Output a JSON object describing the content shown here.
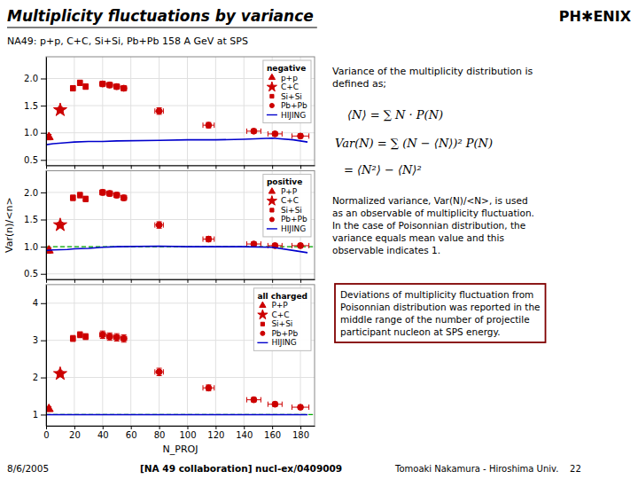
{
  "title": "Multiplicity fluctuations by variance",
  "subtitle": "NA49: p+p, C+C, Si+Si, Pb+Pb 158 A GeV at SPS",
  "annotations": [
    [
      "PH✱ENIX"
    ],
    [
      "Variance of the multiplicity distribution is",
      "defined as;"
    ],
    [
      "⟨N⟩ = ∑ N · P(N)"
    ],
    [
      "Var(N) = ∑ (N − ⟨N⟩)² P(N)"
    ],
    [
      "= ⟨N²⟩ − ⟨N⟩²"
    ],
    [
      "Normalized variance, Var(N)/<N>, is used",
      "as an observable of multiplicity fluctuation.",
      "In the case of Poisonnian distribution, the",
      "variance equals mean value and this",
      "observable indicates 1."
    ],
    [
      "Deviations of multiplicity fluctuation from",
      "Poisonnian distribution was reported in the",
      "middle range of the number of projectile",
      "participant nucleon at SPS energy."
    ],
    [
      "8/6/2005"
    ],
    [
      "[NA 49 collaboration] nucl-ex/0409009"
    ],
    [
      "Tomoaki Nakamura - Hiroshima Univ.    22"
    ]
  ],
  "chart_data": [
    {
      "type": "scatter",
      "title": "negative",
      "xlim": [
        0,
        190
      ],
      "xticks": [
        0,
        20,
        40,
        60,
        80,
        100,
        120,
        140,
        160,
        180
      ],
      "ylim": [
        0.4,
        2.4
      ],
      "yticks": [
        0.5,
        {
          "value": 1,
          "label": "1.0"
        },
        1.5,
        {
          "value": 2,
          "label": "2.0"
        }
      ],
      "grid": true,
      "legend": "upper right",
      "tick_labels": "y",
      "series": [
        {
          "name": "p+p",
          "marker": "triangle",
          "color": "#cc0000",
          "x": [
            2
          ],
          "values": [
            0.92
          ],
          "x_errors": [
            0
          ],
          "y_errors": [
            0.05
          ]
        },
        {
          "name": "C+C",
          "marker": "star",
          "color": "#cc0000",
          "x": [
            10
          ],
          "values": [
            1.42
          ],
          "x_errors": [
            2
          ],
          "y_errors": [
            0.05
          ]
        },
        {
          "name": "Si+Si",
          "marker": "square",
          "color": "#cc0000",
          "x": [
            19,
            24,
            28
          ],
          "values": [
            1.82,
            1.92,
            1.85
          ],
          "x_errors": [
            1,
            1,
            1
          ],
          "y_errors": [
            0.05,
            0.05,
            0.05
          ]
        },
        {
          "name": "Pb+Pb",
          "marker": "circle",
          "color": "#cc0000",
          "x": [
            40,
            45,
            50,
            55,
            80,
            115,
            147,
            162,
            180
          ],
          "values": [
            1.9,
            1.88,
            1.85,
            1.82,
            1.4,
            1.14,
            1.03,
            0.98,
            0.94
          ],
          "x_errors": [
            2,
            2,
            2,
            2,
            3,
            4,
            5,
            5,
            6
          ],
          "y_errors": [
            0.05,
            0.05,
            0.05,
            0.05,
            0.06,
            0.05,
            0.04,
            0.04,
            0.04
          ]
        },
        {
          "name": "HIJING",
          "type": "line",
          "color": "#0000cc",
          "x": [
            0,
            5,
            15,
            20,
            30,
            40,
            50,
            80,
            100,
            120,
            140,
            160,
            175,
            185
          ],
          "values": [
            0.78,
            0.8,
            0.82,
            0.83,
            0.84,
            0.84,
            0.85,
            0.86,
            0.87,
            0.87,
            0.88,
            0.9,
            0.87,
            0.83
          ]
        }
      ]
    },
    {
      "type": "scatter",
      "title": "positive",
      "ylabel": "Var(n)/<n>",
      "xlim": [
        0,
        190
      ],
      "xticks": [
        0,
        20,
        40,
        60,
        80,
        100,
        120,
        140,
        160,
        180
      ],
      "ylim": [
        0.4,
        2.4
      ],
      "yticks": [
        0.5,
        {
          "value": 1,
          "label": "1.0"
        },
        1.5,
        {
          "value": 2,
          "label": "2.0"
        }
      ],
      "grid": true,
      "legend": "upper right",
      "tick_labels": "y",
      "reference_line": {
        "value": 1,
        "color": "#00aa00",
        "line_style": "dashed"
      },
      "series": [
        {
          "name": "P+P",
          "marker": "triangle",
          "color": "#cc0000",
          "x": [
            2
          ],
          "values": [
            0.93
          ],
          "x_errors": [
            0
          ],
          "y_errors": [
            0.05
          ]
        },
        {
          "name": "C+C",
          "marker": "star",
          "color": "#cc0000",
          "x": [
            10
          ],
          "values": [
            1.4
          ],
          "x_errors": [
            2
          ],
          "y_errors": [
            0.05
          ]
        },
        {
          "name": "Si+Si",
          "marker": "square",
          "color": "#cc0000",
          "x": [
            19,
            24,
            28
          ],
          "values": [
            1.9,
            1.95,
            1.88
          ],
          "x_errors": [
            1,
            1,
            1
          ],
          "y_errors": [
            0.05,
            0.05,
            0.05
          ]
        },
        {
          "name": "Pb+Pb",
          "marker": "circle",
          "color": "#cc0000",
          "x": [
            40,
            45,
            50,
            55,
            80,
            115,
            147,
            162,
            180
          ],
          "values": [
            2.0,
            1.98,
            1.95,
            1.9,
            1.4,
            1.14,
            1.05,
            1.02,
            1.02
          ],
          "x_errors": [
            2,
            2,
            2,
            2,
            3,
            4,
            5,
            5,
            6
          ],
          "y_errors": [
            0.05,
            0.05,
            0.05,
            0.05,
            0.06,
            0.05,
            0.04,
            0.04,
            0.04
          ]
        },
        {
          "name": "HIJING",
          "type": "line",
          "color": "#0000cc",
          "x": [
            0,
            5,
            15,
            20,
            30,
            40,
            50,
            80,
            100,
            120,
            140,
            160,
            175,
            185
          ],
          "values": [
            0.93,
            0.94,
            0.95,
            0.96,
            0.97,
            0.99,
            1.0,
            1.01,
            1.0,
            1.0,
            1.0,
            0.99,
            0.93,
            0.89
          ]
        }
      ]
    },
    {
      "type": "scatter",
      "title": "all charged",
      "xlabel": "N_PROJ",
      "xlim": [
        0,
        190
      ],
      "xticks": [
        0,
        20,
        40,
        60,
        80,
        100,
        120,
        140,
        160,
        180
      ],
      "ylim": [
        0.7,
        4.5
      ],
      "yticks": [
        1,
        2,
        3,
        4
      ],
      "grid": true,
      "legend": "upper right",
      "reference_line": {
        "value": 1,
        "color": "#00aa00",
        "line_style": "dashed"
      },
      "series": [
        {
          "name": "P+P",
          "marker": "triangle",
          "color": "#cc0000",
          "x": [
            2
          ],
          "values": [
            1.15
          ],
          "x_errors": [
            0
          ],
          "y_errors": [
            0.06
          ]
        },
        {
          "name": "C+C",
          "marker": "star",
          "color": "#cc0000",
          "x": [
            10
          ],
          "values": [
            2.1
          ],
          "x_errors": [
            2
          ],
          "y_errors": [
            0.08
          ]
        },
        {
          "name": "Si+Si",
          "marker": "square",
          "color": "#cc0000",
          "x": [
            19,
            24,
            28
          ],
          "values": [
            3.05,
            3.15,
            3.1
          ],
          "x_errors": [
            1,
            1,
            1
          ],
          "y_errors": [
            0.08,
            0.08,
            0.08
          ]
        },
        {
          "name": "Pb+Pb",
          "marker": "circle",
          "color": "#cc0000",
          "x": [
            40,
            45,
            50,
            55,
            80,
            115,
            147,
            162,
            180
          ],
          "values": [
            3.15,
            3.1,
            3.08,
            3.05,
            2.15,
            1.72,
            1.4,
            1.28,
            1.2
          ],
          "x_errors": [
            2,
            2,
            2,
            2,
            3,
            4,
            5,
            5,
            6
          ],
          "y_errors": [
            0.1,
            0.1,
            0.1,
            0.1,
            0.1,
            0.08,
            0.06,
            0.06,
            0.06
          ]
        },
        {
          "name": "HIJING",
          "type": "line",
          "color": "#0000cc",
          "x": [
            0,
            5,
            15,
            20,
            30,
            40,
            50,
            80,
            100,
            120,
            140,
            160,
            175,
            185
          ],
          "values": [
            1.0,
            1.0,
            1.0,
            1.0,
            1.0,
            1.0,
            1.0,
            1.0,
            1.0,
            1.0,
            1.0,
            1.0,
            1.0,
            1.0
          ]
        }
      ]
    }
  ]
}
